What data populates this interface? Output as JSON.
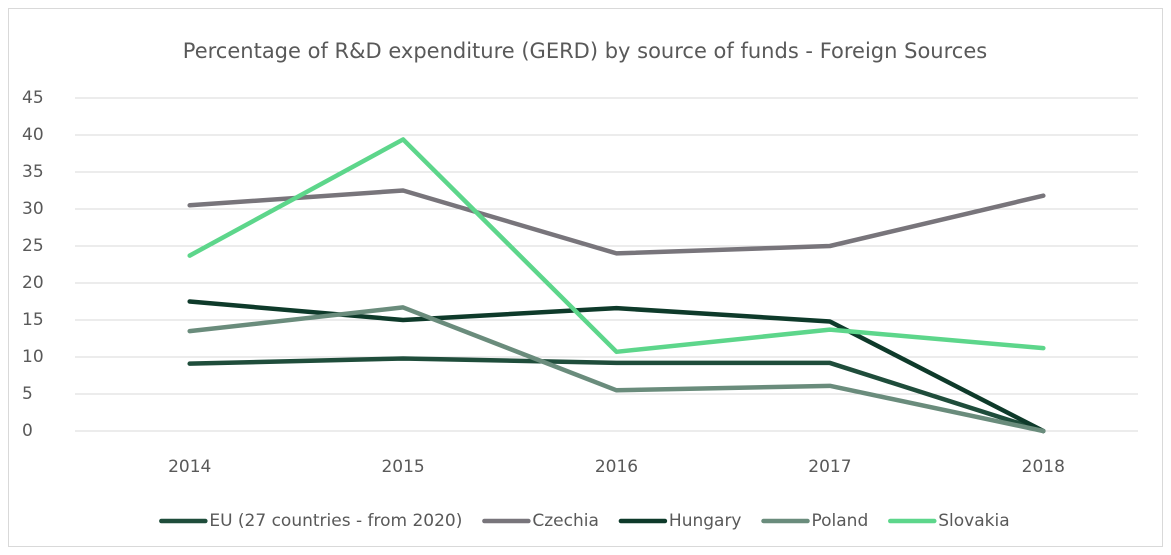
{
  "chart_data": {
    "type": "line",
    "title": "Percentage of R&D expenditure (GERD) by source of funds - Foreign Sources",
    "categories": [
      "2014",
      "2015",
      "2016",
      "2017",
      "2018"
    ],
    "series": [
      {
        "name": "EU (27 countries - from 2020)",
        "color": "#1f4d3b",
        "values": [
          9.1,
          9.8,
          9.2,
          9.2,
          0
        ]
      },
      {
        "name": "Czechia",
        "color": "#78757b",
        "values": [
          30.5,
          32.5,
          24.0,
          25.0,
          31.8
        ]
      },
      {
        "name": "Hungary",
        "color": "#0e3a2a",
        "values": [
          17.5,
          15.0,
          16.6,
          14.8,
          0
        ]
      },
      {
        "name": "Poland",
        "color": "#6a8c7c",
        "values": [
          13.5,
          16.7,
          5.5,
          6.1,
          0
        ]
      },
      {
        "name": "Slovakia",
        "color": "#5dd68b",
        "values": [
          23.7,
          39.4,
          10.7,
          13.7,
          11.2
        ]
      }
    ],
    "ylim": [
      0,
      45
    ],
    "yticks": [
      0,
      5,
      10,
      15,
      20,
      25,
      30,
      35,
      40,
      45
    ],
    "grid": true,
    "legend": "bottom"
  }
}
